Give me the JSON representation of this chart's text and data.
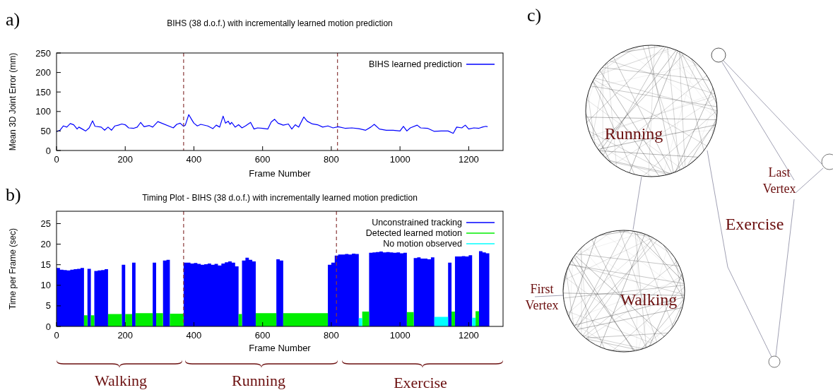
{
  "chart_data": [
    {
      "type": "line",
      "title": "BIHS (38 d.o.f.) with incrementally learned motion prediction",
      "xlabel": "Frame Number",
      "ylabel": "Mean 3D Joint Error (mm)",
      "xlim": [
        0,
        1300
      ],
      "xticks": [
        0,
        200,
        400,
        600,
        800,
        1000,
        1200
      ],
      "ylim": [
        0,
        250
      ],
      "yticks": [
        0,
        50,
        100,
        150,
        200,
        250
      ],
      "legend": "top right",
      "annotations": [
        "a)"
      ],
      "ref_lines": [
        {
          "axis": "x",
          "value": 370,
          "color": "#8b3a3a",
          "line_style": "dashed"
        },
        {
          "axis": "x",
          "value": 818,
          "color": "#8b3a3a",
          "line_style": "dashed"
        }
      ],
      "series": [
        {
          "name": "BIHS learned prediction",
          "color": "#0000ff",
          "x": [
            0,
            10,
            20,
            30,
            40,
            50,
            60,
            65,
            75,
            85,
            95,
            105,
            112,
            130,
            140,
            150,
            160,
            170,
            180,
            190,
            200,
            210,
            225,
            235,
            245,
            255,
            270,
            280,
            295,
            340,
            350,
            360,
            370,
            375,
            385,
            393,
            400,
            410,
            420,
            440,
            455,
            465,
            475,
            485,
            492,
            500,
            505,
            510,
            520,
            530,
            540,
            550,
            565,
            575,
            585,
            600,
            615,
            625,
            635,
            645,
            660,
            675,
            685,
            695,
            705,
            720,
            730,
            745,
            760,
            775,
            790,
            805,
            820,
            840,
            860,
            880,
            900,
            915,
            925,
            940,
            960,
            980,
            1000,
            1010,
            1020,
            1030,
            1050,
            1060,
            1080,
            1100,
            1120,
            1140,
            1155,
            1165,
            1180,
            1190,
            1200,
            1215,
            1230,
            1240,
            1250,
            1255
          ],
          "values": [
            48,
            52,
            63,
            60,
            69,
            66,
            55,
            60,
            55,
            50,
            58,
            76,
            62,
            60,
            52,
            60,
            52,
            63,
            65,
            68,
            66,
            58,
            57,
            60,
            72,
            61,
            64,
            60,
            74,
            58,
            67,
            70,
            62,
            65,
            92,
            80,
            70,
            63,
            67,
            63,
            56,
            65,
            60,
            88,
            70,
            75,
            67,
            72,
            60,
            66,
            58,
            63,
            72,
            55,
            58,
            57,
            55,
            73,
            80,
            70,
            65,
            68,
            55,
            66,
            60,
            86,
            75,
            68,
            66,
            60,
            63,
            58,
            61,
            57,
            58,
            56,
            52,
            60,
            67,
            55,
            52,
            52,
            50,
            62,
            50,
            58,
            65,
            58,
            57,
            49,
            50,
            50,
            44,
            60,
            58,
            65,
            55,
            58,
            57,
            60,
            62,
            61
          ]
        }
      ]
    },
    {
      "type": "area",
      "title": "Timing Plot - BIHS (38 d.o.f.) with incrementally learned motion prediction",
      "xlabel": "Frame Number",
      "ylabel": "Time per Frame (sec)",
      "xlim": [
        0,
        1300
      ],
      "xticks": [
        0,
        200,
        400,
        600,
        800,
        1000,
        1200
      ],
      "ylim": [
        0,
        28
      ],
      "yticks": [
        0,
        5,
        10,
        15,
        20,
        25
      ],
      "legend": "top right",
      "annotations": [
        "b)",
        "Walking",
        "Running",
        "Exercise"
      ],
      "ref_lines": [
        {
          "axis": "x",
          "value": 370,
          "color": "#8b3a3a",
          "line_style": "dashed"
        },
        {
          "axis": "x",
          "value": 815,
          "color": "#8b3a3a",
          "line_style": "dashed"
        }
      ],
      "series": [
        {
          "name": "Unconstrained tracking",
          "color": "#0000ff",
          "x": [
            5,
            15,
            25,
            35,
            45,
            55,
            65,
            75,
            95,
            115,
            125,
            135,
            145,
            195,
            225,
            285,
            315,
            325,
            375,
            385,
            395,
            405,
            415,
            425,
            435,
            445,
            455,
            465,
            475,
            485,
            495,
            505,
            515,
            525,
            545,
            555,
            565,
            575,
            645,
            655,
            795,
            805,
            815,
            825,
            835,
            845,
            855,
            865,
            875,
            915,
            925,
            935,
            945,
            955,
            965,
            975,
            985,
            995,
            1005,
            1015,
            1045,
            1055,
            1065,
            1075,
            1085,
            1095,
            1145,
            1165,
            1175,
            1185,
            1195,
            1205,
            1235,
            1245,
            1255
          ],
          "values": [
            14.2,
            13.8,
            13.7,
            13.6,
            13.8,
            13.9,
            14.0,
            14.2,
            14.0,
            13.5,
            13.6,
            13.7,
            13.9,
            15.0,
            15.5,
            15.5,
            16.0,
            16.2,
            15.5,
            15.5,
            15.3,
            15.4,
            15.2,
            15.0,
            15.1,
            15.3,
            15.0,
            15.2,
            14.8,
            15.3,
            15.6,
            15.8,
            15.5,
            14.6,
            16.0,
            16.7,
            16.2,
            15.8,
            16.3,
            16.0,
            15.0,
            15.5,
            17.2,
            17.5,
            17.5,
            17.6,
            17.5,
            17.7,
            17.6,
            17.9,
            18.0,
            18.1,
            18.2,
            18.0,
            18.1,
            18.0,
            17.9,
            18.0,
            17.8,
            17.9,
            16.6,
            16.8,
            16.5,
            16.5,
            16.3,
            16.8,
            15.5,
            17.0,
            17.0,
            17.1,
            17.0,
            17.3,
            18.3,
            18.0,
            17.8
          ]
        },
        {
          "name": "Detected learned motion",
          "color": "#00ee00",
          "x": [
            85,
            105,
            155,
            165,
            175,
            185,
            205,
            215,
            235,
            245,
            255,
            265,
            275,
            295,
            305,
            335,
            345,
            355,
            365,
            535,
            585,
            595,
            605,
            615,
            625,
            635,
            665,
            675,
            685,
            695,
            705,
            715,
            725,
            735,
            745,
            755,
            765,
            775,
            785,
            895,
            905,
            1025,
            1035,
            1155,
            1225
          ],
          "values": [
            2.7,
            2.7,
            3.0,
            3.0,
            3.0,
            3.0,
            3.0,
            3.0,
            3.2,
            3.2,
            3.2,
            3.2,
            3.2,
            3.2,
            3.2,
            3.1,
            3.1,
            3.1,
            3.1,
            3.0,
            3.2,
            3.2,
            3.2,
            3.2,
            3.2,
            3.2,
            3.2,
            3.2,
            3.2,
            3.2,
            3.2,
            3.2,
            3.2,
            3.2,
            3.2,
            3.2,
            3.2,
            3.2,
            3.2,
            3.6,
            3.6,
            3.5,
            3.5,
            3.6,
            3.7
          ]
        },
        {
          "name": "No motion observed",
          "color": "#00ffff",
          "x": [
            885,
            1105,
            1115,
            1125,
            1135,
            1215
          ],
          "values": [
            2.0,
            2.3,
            2.3,
            2.3,
            2.3,
            2.1
          ]
        }
      ]
    },
    {
      "type": "other",
      "title": "c)",
      "annotations": [
        "Running",
        "Walking",
        "Exercise",
        "First Vertex",
        "Last Vertex"
      ]
    }
  ]
}
